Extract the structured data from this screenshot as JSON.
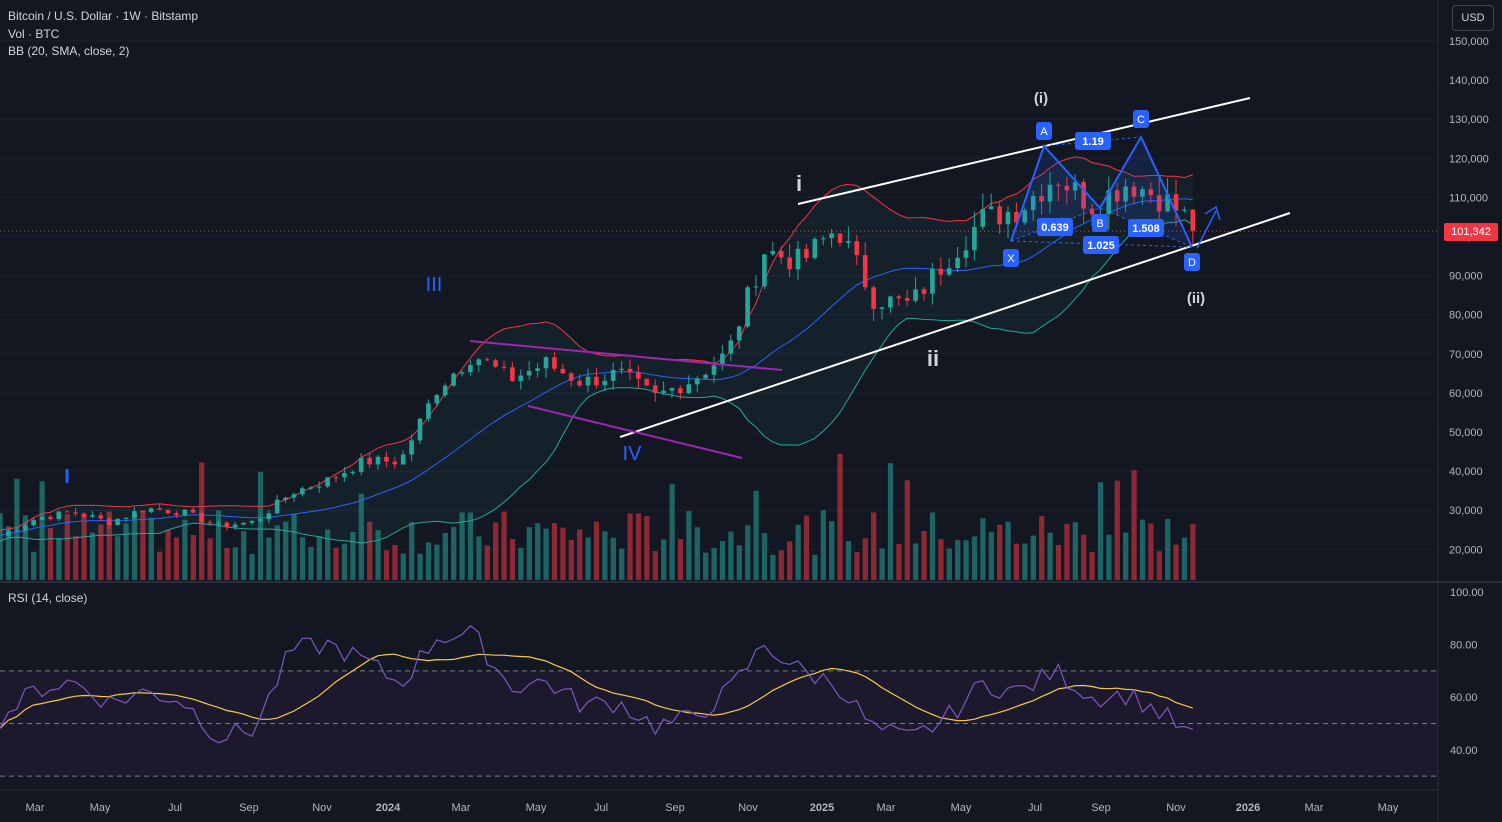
{
  "header": {
    "symbol_line": "Bitcoin / U.S. Dollar · 1W · Bitstamp",
    "vol_line": "Vol · BTC",
    "bb_line": "BB (20, SMA, close, 2)",
    "rsi_line": "RSI (14, close)",
    "currency_button": "USD",
    "last_price": "101,342"
  },
  "colors": {
    "background": "#131722",
    "up": "#26a69a",
    "down": "#f23645",
    "bb_upper": "#f23645",
    "bb_basis": "#2962ff",
    "bb_lower": "#26a69a",
    "rsi_line": "#7e57c2",
    "rsi_ma": "#f7c948",
    "pattern": "#2962ff",
    "triangle": "#9c27b0",
    "channel": "#ffffff"
  },
  "chart_data": [
    {
      "type": "candlestick",
      "title": "Bitcoin / U.S. Dollar · 1W · Bitstamp",
      "ylim": [
        10000,
        152000
      ],
      "y_ticks": [
        "150,000",
        "140,000",
        "130,000",
        "120,000",
        "110,000",
        "100,000",
        "90,000",
        "80,000",
        "70,000",
        "60,000",
        "50,000",
        "40,000",
        "30,000",
        "20,000"
      ],
      "x_ticks": [
        "Mar",
        "May",
        "Jul",
        "Sep",
        "Nov",
        "2024",
        "Mar",
        "May",
        "Jul",
        "Sep",
        "Nov",
        "2025",
        "Mar",
        "May",
        "Jul",
        "Sep",
        "Nov",
        "2026",
        "Mar",
        "May"
      ],
      "x_range": [
        "2023-02",
        "2026-06"
      ],
      "close_path": [
        [
          "2023-02",
          23500
        ],
        [
          "2023-03",
          28000
        ],
        [
          "2023-04",
          29500
        ],
        [
          "2023-05",
          27000
        ],
        [
          "2023-06",
          30500
        ],
        [
          "2023-07",
          29500
        ],
        [
          "2023-08",
          26000
        ],
        [
          "2023-09",
          27000
        ],
        [
          "2023-10",
          34500
        ],
        [
          "2023-11",
          37700
        ],
        [
          "2023-12",
          42500
        ],
        [
          "2024-01",
          42500
        ],
        [
          "2024-02",
          61000
        ],
        [
          "2024-03",
          70000
        ],
        [
          "2024-04",
          63500
        ],
        [
          "2024-05",
          67500
        ],
        [
          "2024-06",
          62700
        ],
        [
          "2024-07",
          65000
        ],
        [
          "2024-08",
          59000
        ],
        [
          "2024-09",
          63300
        ],
        [
          "2024-10",
          70200
        ],
        [
          "2024-11",
          96400
        ],
        [
          "2024-12",
          93400
        ],
        [
          "2025-01",
          102400
        ],
        [
          "2025-02",
          84300
        ],
        [
          "2025-03",
          82500
        ],
        [
          "2025-04",
          94200
        ],
        [
          "2025-05",
          104600
        ],
        [
          "2025-06",
          107100
        ],
        [
          "2025-07",
          115700
        ],
        [
          "2025-08",
          108200
        ],
        [
          "2025-09",
          114000
        ],
        [
          "2025-10",
          109500
        ],
        [
          "2025-11",
          101342
        ]
      ],
      "last_price": 101342,
      "annotations": {
        "impulse_labels": [
          "I",
          "III",
          "IV"
        ],
        "wave_labels": [
          "i",
          "ii",
          "(i)",
          "(ii)"
        ],
        "pattern_points": [
          "X",
          "A",
          "B",
          "C",
          "D"
        ],
        "ratios": [
          "1.19",
          "0.639",
          "1.025",
          "1.508"
        ]
      }
    },
    {
      "type": "line",
      "title": "RSI (14, close)",
      "ylim": [
        20,
        100
      ],
      "y_ticks": [
        "100.00",
        "80.00",
        "60.00",
        "40.00"
      ],
      "bands": [
        30,
        50,
        70
      ],
      "rsi_path": [
        [
          "2023-02",
          52
        ],
        [
          "2023-03",
          63
        ],
        [
          "2023-04",
          66
        ],
        [
          "2023-05",
          58
        ],
        [
          "2023-06",
          62
        ],
        [
          "2023-07",
          59
        ],
        [
          "2023-08",
          45
        ],
        [
          "2023-09",
          48
        ],
        [
          "2023-10",
          78
        ],
        [
          "2023-11",
          80
        ],
        [
          "2023-12",
          74
        ],
        [
          "2024-01",
          65
        ],
        [
          "2024-02",
          83
        ],
        [
          "2024-03",
          84
        ],
        [
          "2024-04",
          64
        ],
        [
          "2024-05",
          66
        ],
        [
          "2024-06",
          57
        ],
        [
          "2024-07",
          58
        ],
        [
          "2024-08",
          49
        ],
        [
          "2024-09",
          52
        ],
        [
          "2024-10",
          62
        ],
        [
          "2024-11",
          80
        ],
        [
          "2024-12",
          70
        ],
        [
          "2025-01",
          65
        ],
        [
          "2025-02",
          48
        ],
        [
          "2025-03",
          44
        ],
        [
          "2025-04",
          52
        ],
        [
          "2025-05",
          65
        ],
        [
          "2025-06",
          62
        ],
        [
          "2025-07",
          70
        ],
        [
          "2025-08",
          60
        ],
        [
          "2025-09",
          61
        ],
        [
          "2025-10",
          53
        ],
        [
          "2025-11",
          42
        ]
      ]
    }
  ]
}
